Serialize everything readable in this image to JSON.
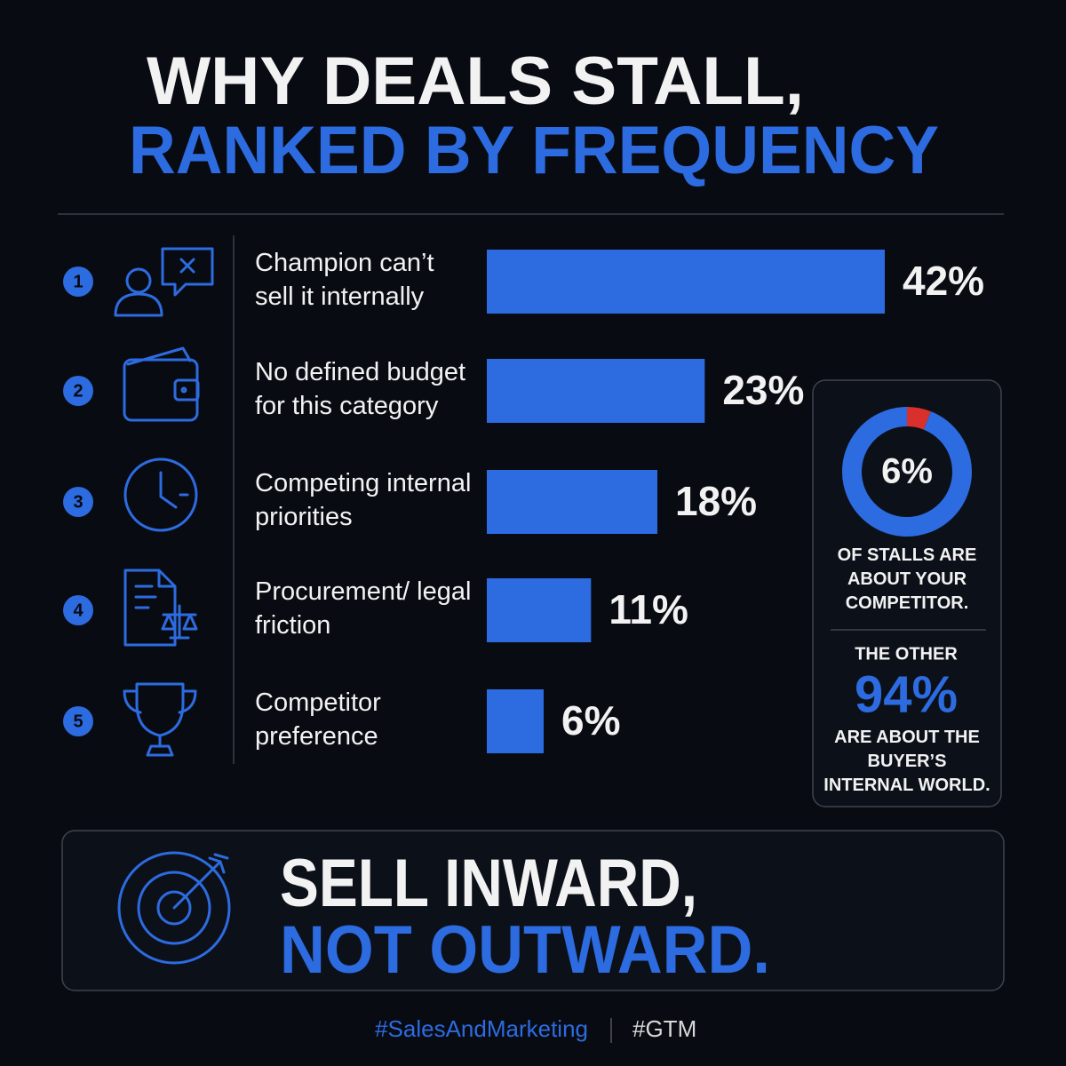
{
  "header": {
    "line1": "WHY DEALS STALL,",
    "line2": "RANKED BY FREQUENCY"
  },
  "chart_data": [
    {
      "type": "hbar",
      "ranks": [
        1,
        2,
        3,
        4,
        5
      ],
      "categories": [
        "Champion can’t sell it internally",
        "No defined budget for this category",
        "Competing internal priorities",
        "Procurement/ legal friction",
        "Competitor preference"
      ],
      "values": [
        42,
        23,
        18,
        11,
        6
      ],
      "value_labels": [
        "42%",
        "23%",
        "18%",
        "11%",
        "6%"
      ],
      "color": "#2d6be0",
      "xlim": [
        0,
        42
      ]
    },
    {
      "type": "donut",
      "values": [
        6,
        94
      ],
      "value_labels": [
        "6%",
        "94%"
      ],
      "colors": [
        "#d9302c",
        "#2d6be0"
      ],
      "annotations": [
        "OF STALLS ARE ABOUT YOUR COMPETITOR.",
        "THE OTHER",
        "ARE ABOUT THE BUYER’S INTERNAL WORLD."
      ]
    }
  ],
  "callout": {
    "line1": "SELL INWARD,",
    "line2": "NOT OUTWARD."
  },
  "hashtags": [
    "#SalesAndMarketing",
    "#GTM"
  ]
}
